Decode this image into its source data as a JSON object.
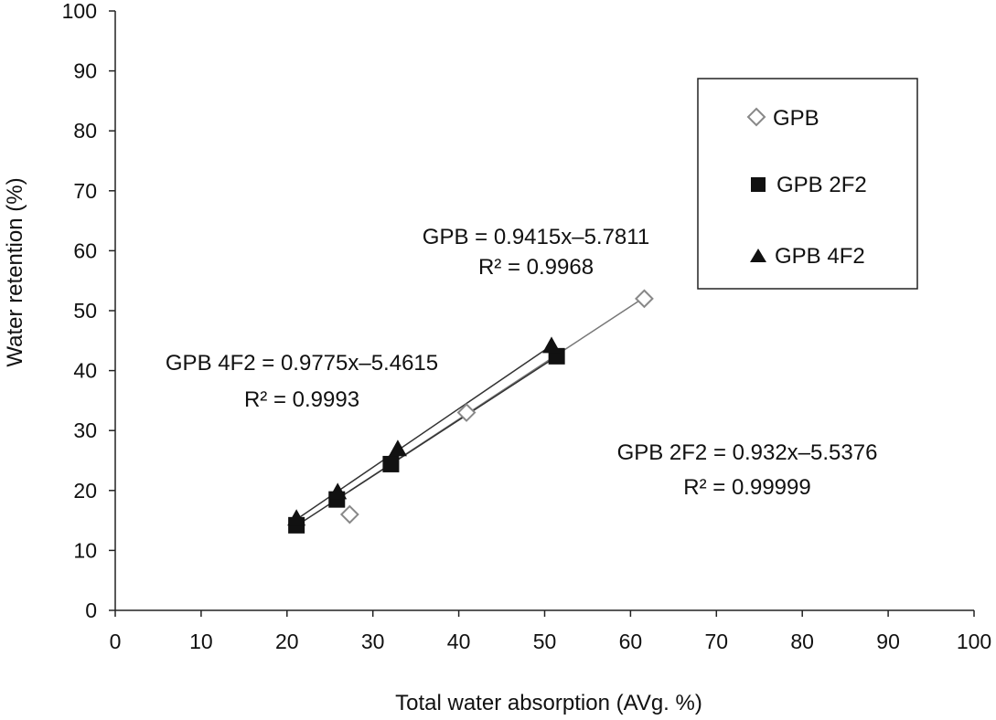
{
  "chart_data": {
    "type": "scatter",
    "title": "",
    "xlabel": "Total water absorption (AVg. %)",
    "ylabel": "Water retention (%)",
    "xlim": [
      0,
      100
    ],
    "ylim": [
      0,
      100
    ],
    "xticks": [
      0,
      10,
      20,
      30,
      40,
      50,
      60,
      70,
      80,
      90,
      100
    ],
    "yticks": [
      0,
      10,
      20,
      30,
      40,
      50,
      60,
      70,
      80,
      90,
      100
    ],
    "grid": false,
    "legend_position": "top-right",
    "series": [
      {
        "name": "GPB",
        "marker": "diamond-open",
        "color": "#888888",
        "points": [
          [
            27.3,
            16.0
          ],
          [
            40.9,
            33.0
          ],
          [
            61.6,
            52.0
          ]
        ],
        "trendline": {
          "slope": 0.9415,
          "intercept": -5.7811,
          "x_range": [
            27.3,
            61.6
          ],
          "equation": "GPB = 0.9415x–5.7811",
          "r2": "R² = 0.9968"
        }
      },
      {
        "name": "GPB 2F2",
        "marker": "square-filled",
        "color": "#111111",
        "points": [
          [
            21.1,
            14.2
          ],
          [
            25.8,
            18.5
          ],
          [
            32.1,
            24.4
          ],
          [
            51.4,
            42.4
          ]
        ],
        "trendline": {
          "slope": 0.932,
          "intercept": -5.5376,
          "x_range": [
            21.1,
            51.4
          ],
          "equation": "GPB 2F2 = 0.932x–5.5376",
          "r2": "R² = 0.99999"
        }
      },
      {
        "name": "GPB 4F2",
        "marker": "triangle-filled",
        "color": "#111111",
        "points": [
          [
            21.1,
            15.2
          ],
          [
            25.9,
            19.6
          ],
          [
            32.9,
            26.8
          ],
          [
            50.8,
            44.0
          ]
        ],
        "trendline": {
          "slope": 0.9775,
          "intercept": -5.4615,
          "x_range": [
            21.1,
            50.8
          ],
          "equation": "GPB 4F2 = 0.9775x–5.4615",
          "r2": "R² = 0.9993"
        }
      }
    ]
  }
}
